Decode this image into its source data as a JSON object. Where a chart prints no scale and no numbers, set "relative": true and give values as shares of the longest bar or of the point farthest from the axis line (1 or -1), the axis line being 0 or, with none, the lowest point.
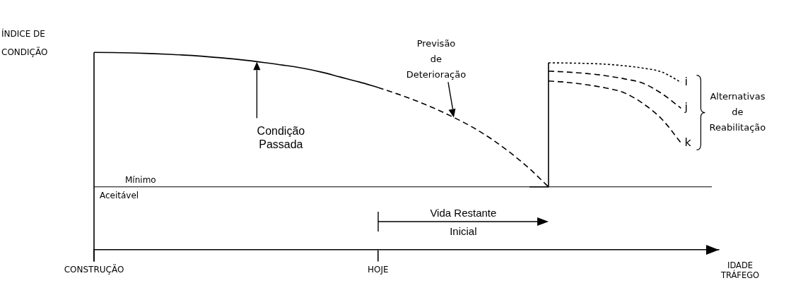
{
  "chart_data": {
    "type": "line",
    "relative": true,
    "ylabel": "ÍNDICE DE CONDIÇÃO",
    "xlabel": "IDADE TRÁFEGO",
    "categories": [
      "CONSTRUÇÃO",
      null,
      null,
      null,
      null,
      null,
      null,
      null,
      null,
      null,
      null,
      null,
      null,
      null,
      null,
      "HOJE",
      null,
      null,
      null,
      null,
      null,
      null,
      null,
      null,
      null,
      null,
      null,
      null,
      null,
      null,
      null,
      null,
      null,
      null
    ],
    "series": [
      {
        "color": "#000000",
        "line_style": "solid",
        "values": [
          1,
          0.999,
          0.997,
          0.994,
          0.99,
          0.985,
          0.978,
          0.97,
          0.96,
          0.948,
          0.935,
          0.92,
          0.9,
          0.875,
          0.85,
          0.822,
          null,
          null,
          null,
          null,
          null,
          null,
          null,
          null,
          null,
          null,
          null,
          null,
          null,
          null,
          null,
          null,
          null,
          null
        ]
      },
      {
        "color": "#000000",
        "line_style": "dashed",
        "values": [
          null,
          null,
          null,
          null,
          null,
          null,
          null,
          null,
          null,
          null,
          null,
          null,
          null,
          null,
          null,
          0.822,
          0.79,
          0.755,
          0.715,
          0.67,
          0.62,
          0.56,
          0.49,
          0.41,
          0.318,
          null,
          null,
          null,
          null,
          null,
          null,
          null,
          null,
          null
        ]
      },
      {
        "type": "step",
        "color": "#000000",
        "line_style": "solid",
        "values": [
          null,
          null,
          null,
          null,
          null,
          null,
          null,
          null,
          null,
          null,
          null,
          null,
          null,
          null,
          null,
          null,
          null,
          null,
          null,
          null,
          null,
          null,
          null,
          0.318,
          0.947,
          null,
          null,
          null,
          null,
          null,
          null,
          null,
          null,
          null
        ]
      },
      {
        "name": "i",
        "color": "#000000",
        "line_style": "dotted",
        "values": [
          null,
          null,
          null,
          null,
          null,
          null,
          null,
          null,
          null,
          null,
          null,
          null,
          null,
          null,
          null,
          null,
          null,
          null,
          null,
          null,
          null,
          null,
          null,
          null,
          0.947,
          0.946,
          0.944,
          0.94,
          0.932,
          0.92,
          0.9,
          0.848,
          null,
          null
        ]
      },
      {
        "name": "j",
        "color": "#000000",
        "line_style": "dashed",
        "values": [
          null,
          null,
          null,
          null,
          null,
          null,
          null,
          null,
          null,
          null,
          null,
          null,
          null,
          null,
          null,
          null,
          null,
          null,
          null,
          null,
          null,
          null,
          null,
          null,
          0.905,
          0.9,
          0.893,
          0.882,
          0.866,
          0.843,
          0.79,
          0.717,
          null,
          null
        ]
      },
      {
        "name": "k",
        "color": "#000000",
        "line_style": "dashed",
        "values": [
          null,
          null,
          null,
          null,
          null,
          null,
          null,
          null,
          null,
          null,
          null,
          null,
          null,
          null,
          null,
          null,
          null,
          null,
          null,
          null,
          null,
          null,
          null,
          null,
          0.855,
          0.848,
          0.836,
          0.82,
          0.795,
          0.74,
          0.66,
          0.541,
          null,
          null
        ]
      }
    ],
    "ref_lines": [
      {
        "axis": "y",
        "value": 0.318,
        "label": "Mínimo Aceitável"
      }
    ],
    "annotations": [
      "Condição Passada",
      "Previsão de Deterioração",
      "Vida Restante Inicial",
      "Alternativas de Reabilitação"
    ],
    "legend": false,
    "marker": "none"
  }
}
